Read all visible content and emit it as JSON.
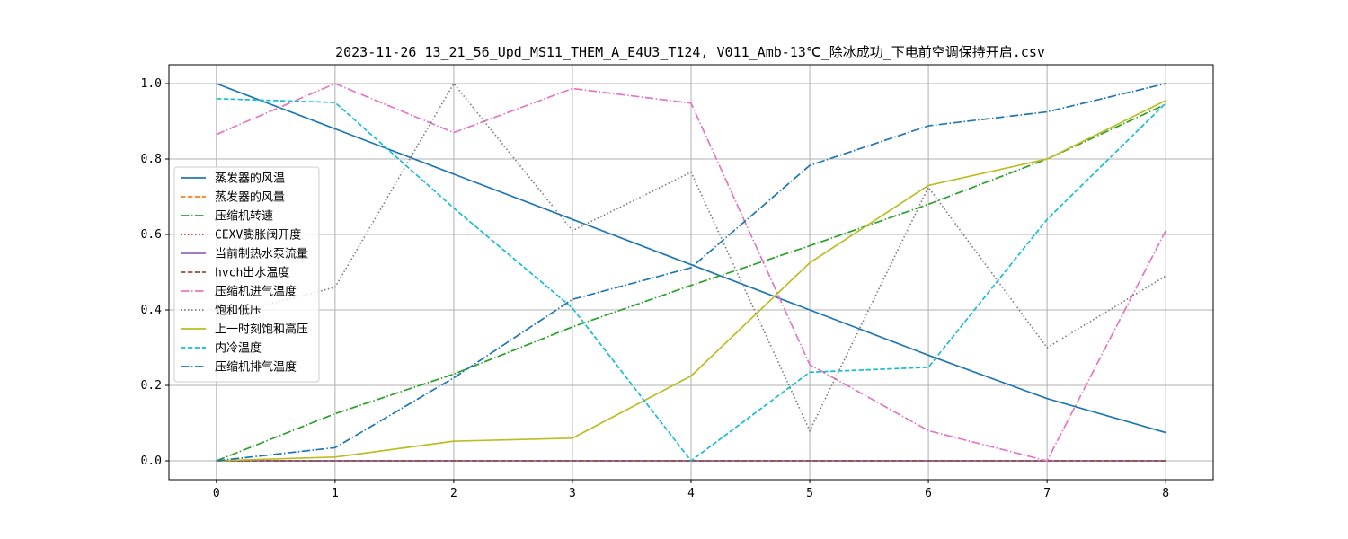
{
  "chart_data": {
    "type": "line",
    "title": "2023-11-26 13_21_56_Upd_MS11_THEM_A_E4U3_T124, V011_Amb-13℃_除冰成功_下电前空调保持开启.csv",
    "xlabel": "",
    "ylabel": "",
    "x": [
      0,
      1,
      2,
      3,
      4,
      5,
      6,
      7,
      8
    ],
    "xlim": [
      -0.4,
      8.4
    ],
    "ylim": [
      -0.05,
      1.05
    ],
    "xticks": [
      "0",
      "1",
      "2",
      "3",
      "4",
      "5",
      "6",
      "7",
      "8"
    ],
    "yticks": [
      "0.0",
      "0.2",
      "0.4",
      "0.6",
      "0.8",
      "1.0"
    ],
    "grid": true,
    "legend_position": "center-left",
    "series": [
      {
        "name": "蒸发器的风温",
        "color": "#1f77b4",
        "dash": "solid",
        "values": [
          1.0,
          0.88,
          0.76,
          0.64,
          0.52,
          0.4,
          0.28,
          0.165,
          0.075
        ]
      },
      {
        "name": "蒸发器的风量",
        "color": "#ff7f0e",
        "dash": "dashed",
        "values": [
          0,
          0,
          0,
          0,
          0,
          0,
          0,
          0,
          0
        ]
      },
      {
        "name": "压缩机转速",
        "color": "#2ca02c",
        "dash": "dashdot",
        "values": [
          0.0,
          0.125,
          0.23,
          0.355,
          0.465,
          0.57,
          0.68,
          0.8,
          0.945
        ]
      },
      {
        "name": "CEXV膨胀阀开度",
        "color": "#d62728",
        "dash": "dotted",
        "values": [
          0,
          0,
          0,
          0,
          0,
          0,
          0,
          0,
          0
        ]
      },
      {
        "name": "当前制热水泵流量",
        "color": "#9467bd",
        "dash": "solid",
        "values": [
          0,
          0,
          0,
          0,
          0,
          0,
          0,
          0,
          0
        ]
      },
      {
        "name": "hvch出水温度",
        "color": "#8c564b",
        "dash": "dashed",
        "values": [
          0,
          0,
          0,
          0,
          0,
          0,
          0,
          0,
          0
        ]
      },
      {
        "name": "压缩机进气温度",
        "color": "#e377c2",
        "dash": "dashdot",
        "values": [
          0.865,
          1.0,
          0.87,
          0.987,
          0.948,
          0.255,
          0.08,
          0.0,
          0.61
        ]
      },
      {
        "name": "饱和低压",
        "color": "#7f7f7f",
        "dash": "dotted",
        "values": [
          0.38,
          0.46,
          1.0,
          0.61,
          0.765,
          0.08,
          0.725,
          0.3,
          0.49
        ]
      },
      {
        "name": "上一时刻饱和高压",
        "color": "#bcbd22",
        "dash": "solid",
        "values": [
          0.0,
          0.01,
          0.052,
          0.06,
          0.225,
          0.525,
          0.73,
          0.8,
          0.955
        ]
      },
      {
        "name": "内冷温度",
        "color": "#17becf",
        "dash": "dashed",
        "values": [
          0.96,
          0.95,
          0.67,
          0.405,
          0.0,
          0.235,
          0.248,
          0.64,
          0.948
        ]
      },
      {
        "name": "压缩机排气温度",
        "color": "#1f77b4",
        "dash": "dashdot",
        "values": [
          0.0,
          0.035,
          0.22,
          0.428,
          0.512,
          0.783,
          0.888,
          0.925,
          1.0
        ]
      }
    ]
  }
}
